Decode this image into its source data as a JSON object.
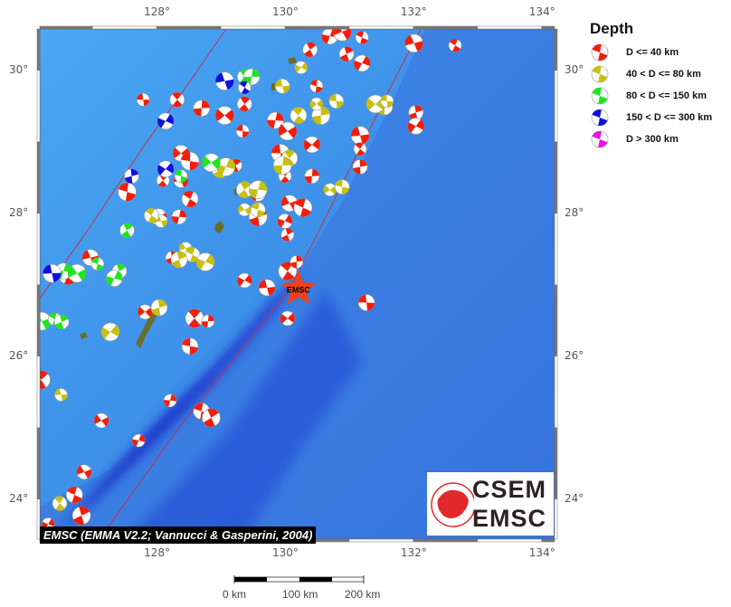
{
  "map": {
    "extent": {
      "lon_min": 126.18,
      "lon_max": 134.2,
      "lat_min": 23.44,
      "lat_max": 30.58
    },
    "lon_ticks": [
      {
        "value": 128,
        "label": "128°"
      },
      {
        "value": 130,
        "label": "130°"
      },
      {
        "value": 132,
        "label": "132°"
      },
      {
        "value": 134,
        "label": "134°"
      }
    ],
    "lat_ticks": [
      {
        "value": 30,
        "label": "30°"
      },
      {
        "value": 28,
        "label": "28°"
      },
      {
        "value": 26,
        "label": "26°"
      },
      {
        "value": 24,
        "label": "24°"
      }
    ],
    "colors": {
      "shallow_sea": "#4aa0ee",
      "deep_sea": "#1a2fd0",
      "land": "#6b6d2c",
      "plate_boundary": "#c0304a"
    },
    "epicenter": {
      "lon": 130.21,
      "lat": 26.94,
      "label": "EMSC",
      "color": "#f0401a"
    }
  },
  "legend": {
    "title": "Depth",
    "items": [
      {
        "label": "D <= 40 km",
        "color": "#f21d0c"
      },
      {
        "label": "40 < D <= 80 km",
        "color": "#c8c010"
      },
      {
        "label": "80 < D <= 150 km",
        "color": "#1ee61e"
      },
      {
        "label": "150 < D <= 300 km",
        "color": "#1010e0"
      },
      {
        "label": "D > 300 km",
        "color": "#f010e8"
      }
    ]
  },
  "events": [
    [
      127.79,
      29.59,
      0
    ],
    [
      128.32,
      29.59,
      0
    ],
    [
      128.7,
      29.47,
      0
    ],
    [
      129.06,
      29.37,
      0
    ],
    [
      129.34,
      29.15,
      0
    ],
    [
      129.37,
      29.53,
      0
    ],
    [
      129.85,
      29.3,
      0
    ],
    [
      130.04,
      29.15,
      0
    ],
    [
      130.49,
      29.78,
      0
    ],
    [
      130.39,
      30.29,
      0
    ],
    [
      130.7,
      30.48,
      0
    ],
    [
      130.89,
      30.54,
      0
    ],
    [
      131.2,
      30.46,
      0
    ],
    [
      130.96,
      30.23,
      0
    ],
    [
      131.2,
      30.1,
      0
    ],
    [
      132.01,
      30.38,
      0
    ],
    [
      132.65,
      30.35,
      0
    ],
    [
      132.04,
      29.41,
      0
    ],
    [
      132.04,
      29.22,
      0
    ],
    [
      131.17,
      29.09,
      0
    ],
    [
      131.17,
      28.9,
      0
    ],
    [
      131.17,
      28.65,
      0
    ],
    [
      130.42,
      28.96,
      0
    ],
    [
      129.93,
      28.84,
      0
    ],
    [
      130.0,
      28.52,
      0
    ],
    [
      130.42,
      28.52,
      0
    ],
    [
      128.38,
      28.84,
      0
    ],
    [
      128.52,
      28.73,
      0
    ],
    [
      128.1,
      28.46,
      0
    ],
    [
      128.35,
      27.95,
      0
    ],
    [
      128.03,
      27.95,
      0
    ],
    [
      127.54,
      28.3,
      0
    ],
    [
      129.23,
      28.67,
      0
    ],
    [
      129.58,
      28.27,
      0
    ],
    [
      130.07,
      28.14,
      0
    ],
    [
      130.28,
      28.08,
      0
    ],
    [
      130.04,
      27.7,
      0
    ],
    [
      130.0,
      27.89,
      0
    ],
    [
      126.97,
      27.38,
      0
    ],
    [
      126.62,
      27.13,
      0
    ],
    [
      128.24,
      27.38,
      0
    ],
    [
      129.37,
      27.06,
      0
    ],
    [
      129.72,
      26.96,
      0
    ],
    [
      130.04,
      27.19,
      0
    ],
    [
      130.18,
      27.32,
      0
    ],
    [
      130.04,
      26.53,
      0
    ],
    [
      131.27,
      26.75,
      0
    ],
    [
      128.59,
      26.53,
      0
    ],
    [
      128.8,
      26.49,
      0
    ],
    [
      127.82,
      26.62,
      0
    ],
    [
      128.52,
      26.14,
      0
    ],
    [
      126.2,
      25.67,
      0
    ],
    [
      128.21,
      25.38,
      0
    ],
    [
      127.14,
      25.1,
      0
    ],
    [
      128.7,
      25.23,
      0
    ],
    [
      128.85,
      25.14,
      0
    ],
    [
      127.72,
      24.82,
      0
    ],
    [
      126.87,
      24.38,
      0
    ],
    [
      126.72,
      24.06,
      0
    ],
    [
      126.83,
      23.77,
      0
    ],
    [
      126.31,
      23.65,
      0
    ],
    [
      128.38,
      28.46,
      0
    ],
    [
      128.52,
      28.2,
      0
    ],
    [
      129.58,
      27.95,
      0
    ],
    [
      130.25,
      30.04,
      1
    ],
    [
      129.96,
      29.78,
      1
    ],
    [
      130.21,
      29.37,
      1
    ],
    [
      130.56,
      29.37,
      1
    ],
    [
      130.49,
      29.53,
      1
    ],
    [
      130.8,
      29.57,
      1
    ],
    [
      130.07,
      28.77,
      1
    ],
    [
      129.96,
      28.67,
      1
    ],
    [
      130.7,
      28.33,
      1
    ],
    [
      130.89,
      28.37,
      1
    ],
    [
      129.37,
      28.33,
      1
    ],
    [
      129.58,
      28.33,
      1
    ],
    [
      129.37,
      28.05,
      1
    ],
    [
      129.58,
      28.05,
      1
    ],
    [
      128.99,
      28.61,
      1
    ],
    [
      129.08,
      28.65,
      1
    ],
    [
      128.45,
      27.51,
      1
    ],
    [
      128.56,
      27.42,
      1
    ],
    [
      128.35,
      27.35,
      1
    ],
    [
      128.76,
      27.32,
      1
    ],
    [
      128.07,
      27.89,
      1
    ],
    [
      127.92,
      27.97,
      1
    ],
    [
      128.04,
      26.68,
      1
    ],
    [
      127.28,
      26.34,
      1
    ],
    [
      126.51,
      25.46,
      1
    ],
    [
      126.49,
      23.94,
      1
    ],
    [
      131.55,
      29.49,
      1
    ],
    [
      131.41,
      29.53,
      1
    ],
    [
      131.59,
      29.57,
      1
    ],
    [
      129.37,
      29.91,
      2
    ],
    [
      129.48,
      29.91,
      2
    ],
    [
      128.85,
      28.71,
      2
    ],
    [
      128.38,
      28.52,
      2
    ],
    [
      127.54,
      27.76,
      2
    ],
    [
      126.55,
      27.19,
      2
    ],
    [
      126.76,
      27.16,
      2
    ],
    [
      127.08,
      27.29,
      2
    ],
    [
      127.42,
      27.19,
      2
    ],
    [
      127.34,
      27.09,
      2
    ],
    [
      126.21,
      26.49,
      2
    ],
    [
      126.41,
      26.52,
      2
    ],
    [
      126.52,
      26.48,
      2
    ],
    [
      128.14,
      29.29,
      3
    ],
    [
      129.06,
      29.85,
      3
    ],
    [
      129.37,
      29.76,
      3
    ],
    [
      127.61,
      28.52,
      3
    ],
    [
      128.14,
      28.62,
      3
    ],
    [
      126.37,
      27.16,
      3
    ]
  ],
  "credit": "EMSC (EMMA V2.2; Vannucci & Gasperini, 2004)",
  "logo": {
    "line1": "CSEM",
    "line2": "EMSC"
  },
  "scale_bar": {
    "labels": [
      "0 km",
      "100 km",
      "200 km"
    ]
  }
}
